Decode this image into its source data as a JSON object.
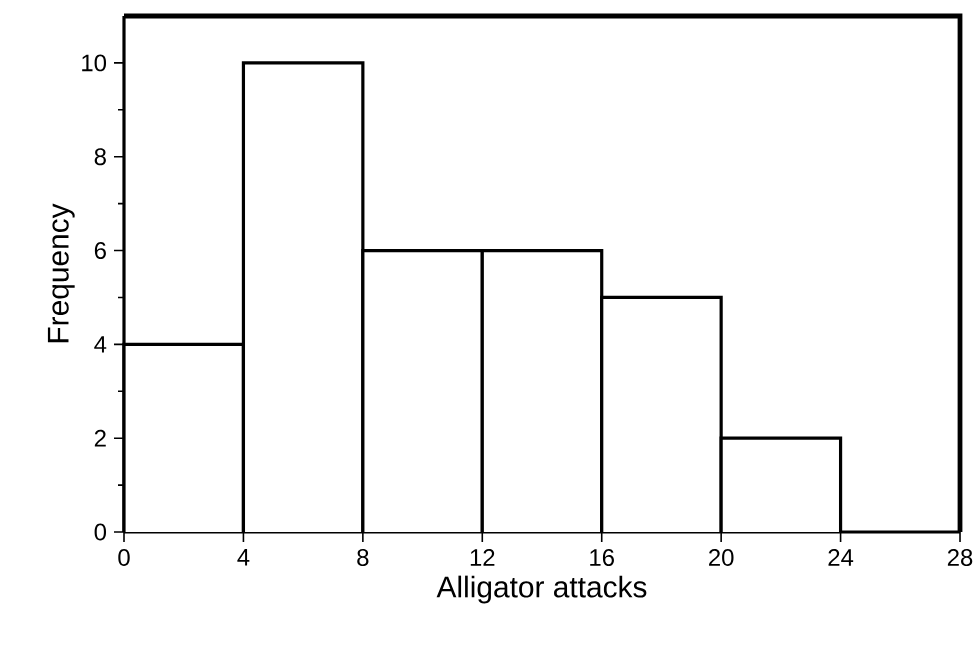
{
  "chart_data": {
    "type": "histogram",
    "xlabel": "Alligator attacks",
    "ylabel": "Frequency",
    "bins": [
      0,
      4,
      8,
      12,
      16,
      20,
      24
    ],
    "values": [
      4,
      10,
      6,
      6,
      5,
      2
    ],
    "color": "#000000",
    "xlim": [
      0,
      28
    ],
    "xticks": [
      0,
      4,
      8,
      12,
      16,
      20,
      24,
      28
    ],
    "ylim": [
      0,
      11
    ],
    "yticks": [
      0,
      {
        "value": 1,
        "label": null
      },
      2,
      {
        "value": 3,
        "label": null
      },
      4,
      {
        "value": 5,
        "label": null
      },
      6,
      {
        "value": 7,
        "label": null
      },
      8,
      {
        "value": 9,
        "label": null
      },
      10
    ],
    "grid": false
  }
}
